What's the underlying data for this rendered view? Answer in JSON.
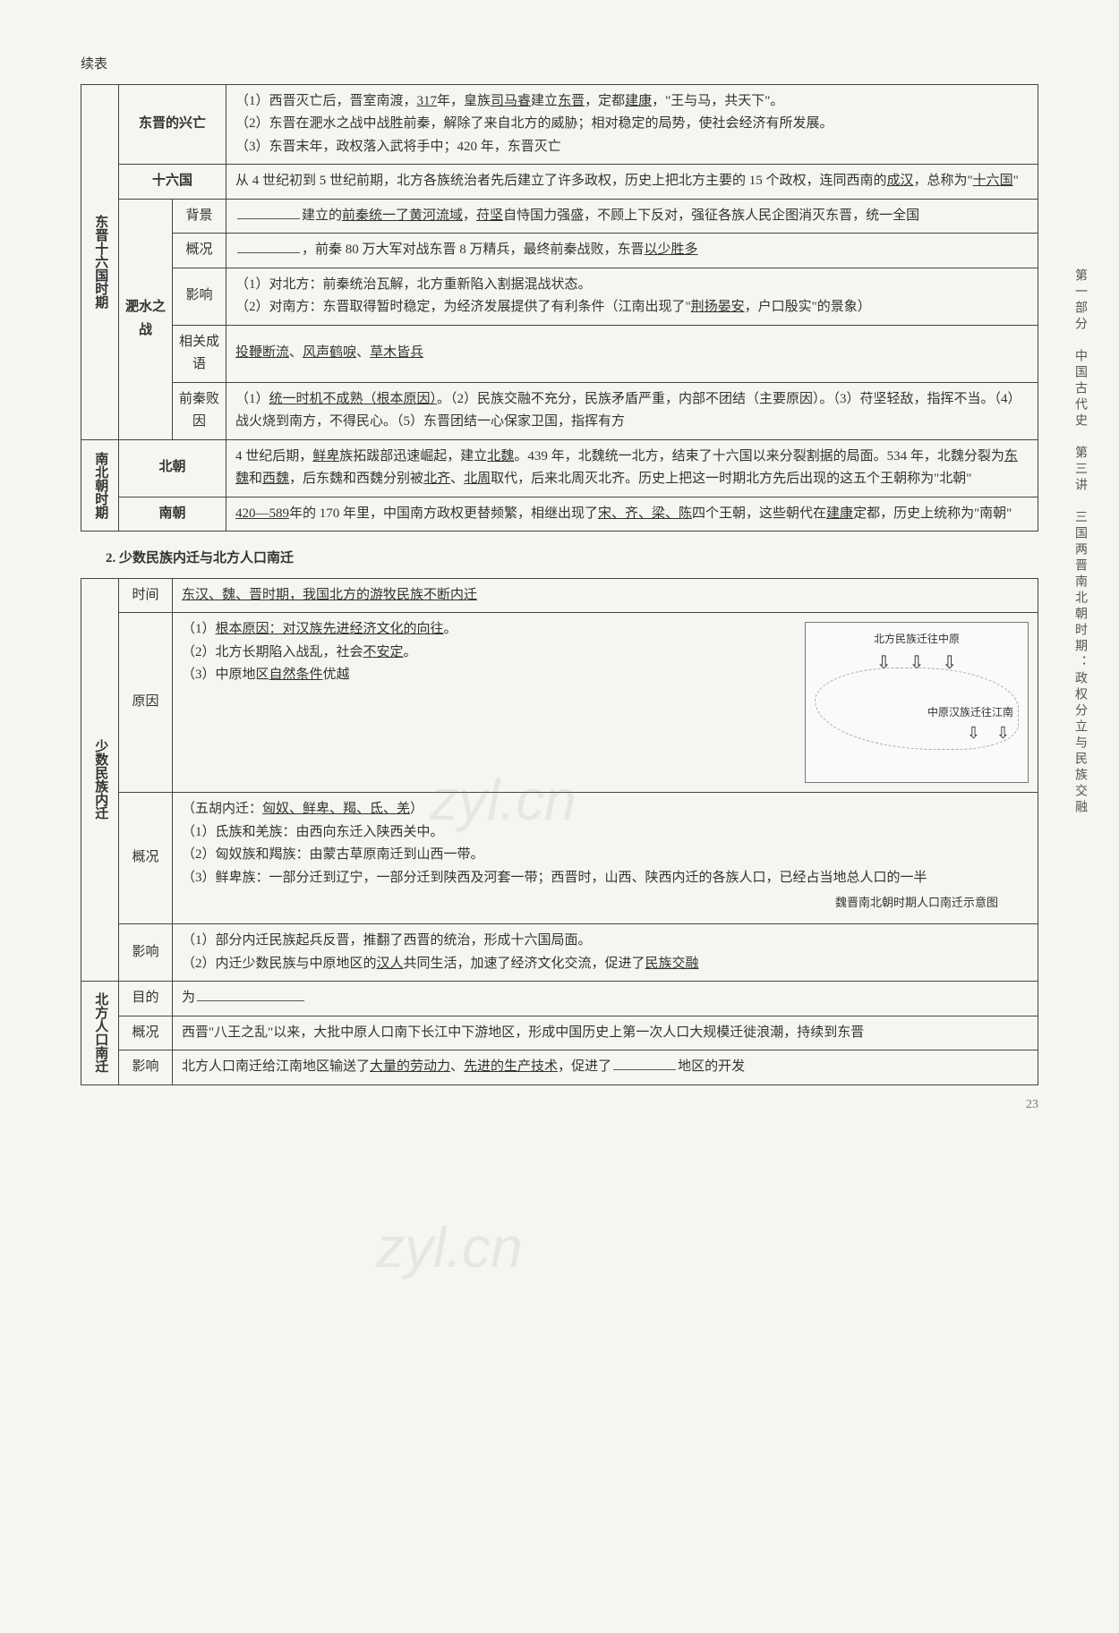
{
  "cont_label": "续表",
  "t1": {
    "group1": {
      "head": "东晋十六国时期"
    },
    "djxw": {
      "head": "东晋的兴亡",
      "l1_a": "（1）西晋灭亡后，晋室南渡，",
      "l1_u1": "317",
      "l1_b": "年，皇族",
      "l1_u2": "司马睿",
      "l1_c": "建立",
      "l1_u3": "东晋",
      "l1_d": "，定都",
      "l1_u4": "建康",
      "l1_e": "，\"王与马，共天下\"。",
      "l2": "（2）东晋在淝水之战中战胜前秦，解除了来自北方的威胁；相对稳定的局势，使社会经济有所发展。",
      "l3": "（3）东晋末年，政权落入武将手中；420 年，东晋灭亡"
    },
    "slg": {
      "head": "十六国",
      "a": "从 4 世纪初到 5 世纪前期，北方各族统治者先后建立了许多政权，历史上把北方主要的 15 个政权，连同西南的",
      "u1": "成汉",
      "b": "，总称为\"",
      "u2": "十六国",
      "c": "\""
    },
    "fszz": {
      "head": "淝水之战"
    },
    "bj": {
      "head": "背景",
      "a": "建立的",
      "u1": "前秦统一了黄河流域",
      "b": "，",
      "u2": "苻坚",
      "c": "自恃国力强盛，不顾上下反对，强征各族人民企图消灭东晋，统一全国"
    },
    "gk": {
      "head": "概况",
      "a": "，前秦 80 万大军对战东晋 8 万精兵，最终前秦战败，东晋",
      "u1": "以少胜多"
    },
    "yx": {
      "head": "影响",
      "l1": "（1）对北方：前秦统治瓦解，北方重新陷入割据混战状态。",
      "l2a": "（2）对南方：东晋取得暂时稳定，为经济发展提供了有利条件（江南出现了\"",
      "l2u": "荆扬晏安",
      "l2b": "，户口殷实\"的景象）"
    },
    "cy": {
      "head": "相关成语",
      "u1": "投鞭断流",
      "s": "、",
      "u2": "风声鹤唳",
      "u3": "草木皆兵"
    },
    "by": {
      "head": "前秦败因",
      "a": "（1）",
      "u1": "统一时机不成熟（根本原因）",
      "b": "。（2）民族交融不充分，民族矛盾严重，内部不团结（主要原因）。（3）苻坚轻敌，指挥不当。（4）战火烧到南方，不得民心。（5）东晋团结一心保家卫国，指挥有方"
    },
    "group2": {
      "head": "南北朝时期"
    },
    "bc": {
      "head": "北朝",
      "a": "4 世纪后期，",
      "u1": "鲜卑",
      "b": "族拓跋部迅速崛起，建立",
      "u2": "北魏",
      "c": "。439 年，北魏统一北方，结束了十六国以来分裂割据的局面。534 年，北魏分裂为",
      "u3": "东魏",
      "d": "和",
      "u4": "西魏",
      "e": "，后东魏和西魏分别被",
      "u5": "北齐",
      "u6": "北周",
      "f": "取代，后来北周灭北齐。历史上把这一时期北方先后出现的这五个王朝称为\"北朝\""
    },
    "nc": {
      "head": "南朝",
      "u1": "420—589",
      "a": "年的 170 年里，中国南方政权更替频繁，相继出现了",
      "u2": "宋、齐、梁、陈",
      "b": "四个王朝，这些朝代在",
      "u3": "建康",
      "c": "定都，历史上统称为\"南朝\""
    }
  },
  "section2": "2. 少数民族内迁与北方人口南迁",
  "t2": {
    "group1": {
      "head": "少数民族内迁"
    },
    "sj": {
      "head": "时间",
      "u1": "东汉、魏、晋时期，我国北方的游牧民族不断内迁"
    },
    "yy": {
      "head": "原因",
      "l1a": "（1）",
      "l1u": "根本原因：对汉族先进经济文化的向往",
      "l1b": "。",
      "l2a": "（2）北方长期陷入战乱，社会",
      "l2u": "不安定",
      "l2b": "。",
      "l3a": "（3）中原地区",
      "l3u": "自然条件",
      "l3b": "优越"
    },
    "gk": {
      "head": "概况",
      "l0a": "（五胡内迁：",
      "l0u": "匈奴、鲜卑、羯、氐、羌",
      "l0b": "）",
      "l1": "（1）氐族和羌族：由西向东迁入陕西关中。",
      "l2": "（2）匈奴族和羯族：由蒙古草原南迁到山西一带。",
      "l3": "（3）鲜卑族：一部分迁到辽宁，一部分迁到陕西及河套一带；西晋时，山西、陕西内迁的各族人口，已经占当地总人口的一半"
    },
    "yx": {
      "head": "影响",
      "l1": "（1）部分内迁民族起兵反晋，推翻了西晋的统治，形成十六国局面。",
      "l2a": "（2）内迁少数民族与中原地区的",
      "l2u1": "汉人",
      "l2b": "共同生活，加速了经济文化交流，促进了",
      "l2u2": "民族交融"
    },
    "map": {
      "top": "北方民族迁往中原",
      "mid": "中原汉族迁往江南",
      "caption": "魏晋南北朝时期人口南迁示意图"
    },
    "group2": {
      "head": "北方人口南迁"
    },
    "md": {
      "head": "目的",
      "a": "为"
    },
    "gk2": {
      "head": "概况",
      "a": "西晋\"八王之乱\"以来，大批中原人口南下长江中下游地区，形成中国历史上第一次人口大规模迁徙浪潮，持续到东晋"
    },
    "yx2": {
      "head": "影响",
      "a": "北方人口南迁给江南地区输送了",
      "u1": "大量的劳动力",
      "s": "、",
      "u2": "先进的生产技术",
      "b": "，促进了",
      "c": "地区的开发"
    }
  },
  "sidebar": "第一部分　中国古代史　第三讲　三国两晋南北朝时期：政权分立与民族交融",
  "pagenum": "23",
  "watermark": "zyl.cn"
}
